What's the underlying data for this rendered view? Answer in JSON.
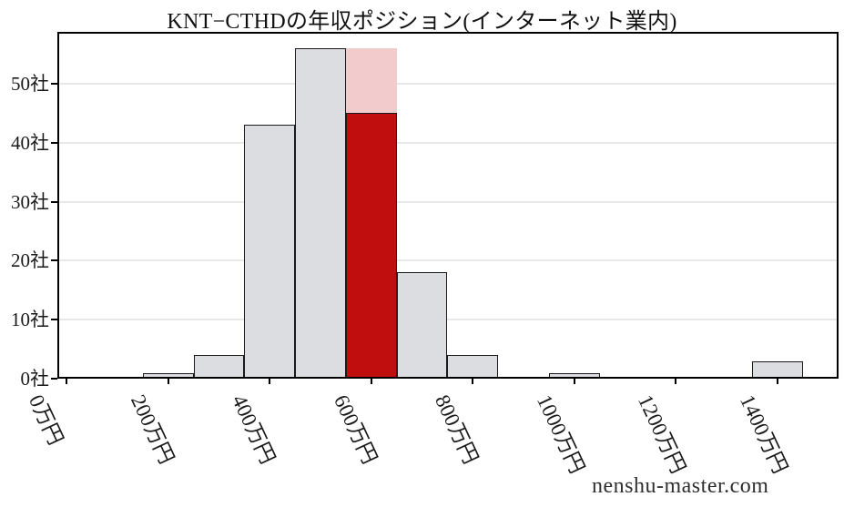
{
  "title": "KNT−CTHDの年収ポジション(インターネット業内)",
  "watermark": "nenshu-master.com",
  "chart_data": {
    "type": "bar",
    "subtype": "histogram",
    "title": "KNT−CTHDの年収ポジション(インターネット業内)",
    "xlabel": "",
    "ylabel": "",
    "unit_x": "万円",
    "unit_y": "社",
    "grid": "horizontal",
    "legend": "none",
    "xlim": [
      -18,
      1520
    ],
    "ylim": [
      0,
      58.8
    ],
    "bin_width": 100,
    "x_ticks": [
      {
        "value": 0,
        "label": "0万円"
      },
      {
        "value": 200,
        "label": "200万円"
      },
      {
        "value": 400,
        "label": "400万円"
      },
      {
        "value": 600,
        "label": "600万円"
      },
      {
        "value": 800,
        "label": "800万円"
      },
      {
        "value": 1000,
        "label": "1000万円"
      },
      {
        "value": 1200,
        "label": "1200万円"
      },
      {
        "value": 1400,
        "label": "1400万円"
      }
    ],
    "y_ticks": [
      {
        "value": 0,
        "label": "0社"
      },
      {
        "value": 10,
        "label": "10社"
      },
      {
        "value": 20,
        "label": "20社"
      },
      {
        "value": 30,
        "label": "30社"
      },
      {
        "value": 40,
        "label": "40社"
      },
      {
        "value": 50,
        "label": "50社"
      }
    ],
    "bars": [
      {
        "center": 200,
        "count": 1
      },
      {
        "center": 300,
        "count": 4
      },
      {
        "center": 400,
        "count": 43
      },
      {
        "center": 500,
        "count": 56
      },
      {
        "center": 600,
        "count": 56,
        "highlight": 45
      },
      {
        "center": 700,
        "count": 18
      },
      {
        "center": 800,
        "count": 4
      },
      {
        "center": 900,
        "count": 0
      },
      {
        "center": 1000,
        "count": 1
      },
      {
        "center": 1100,
        "count": 0
      },
      {
        "center": 1200,
        "count": 0
      },
      {
        "center": 1300,
        "count": 0
      },
      {
        "center": 1400,
        "count": 3
      }
    ],
    "colors": {
      "bar_fill": "#dcdde0",
      "bar_edge": "#1b1b1b",
      "highlight_fill": "#c00d0d",
      "highlight_overlay": "#f2cccd",
      "grid_line": "#e8e8e8",
      "axis": "#000000",
      "text": "#1a1a1a"
    }
  }
}
